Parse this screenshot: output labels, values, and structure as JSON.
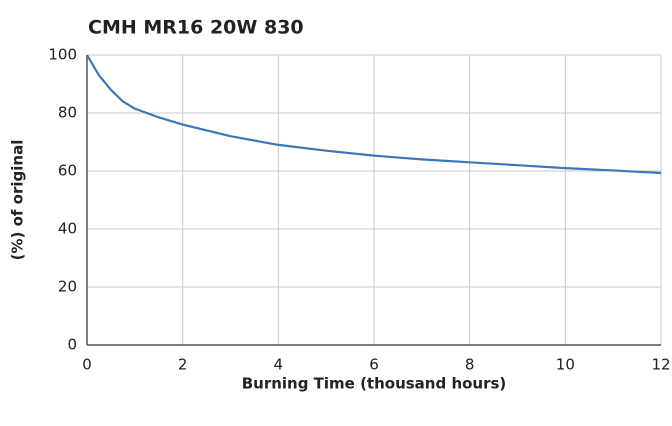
{
  "chart_data": {
    "type": "line",
    "title": "CMH MR16 20W 830",
    "x_label": "Burning Time (thousand hours)",
    "y_label": "(%) of original",
    "x": [
      0,
      0.25,
      0.5,
      0.75,
      1,
      1.5,
      2,
      3,
      4,
      5,
      6,
      7,
      8,
      9,
      10,
      11,
      12
    ],
    "series": [
      {
        "name": "CMH MR16 20W 830",
        "color": "#3a78b8",
        "values": [
          100,
          93,
          88,
          84,
          81.5,
          78.5,
          76,
          72,
          69,
          67,
          65.3,
          64,
          63,
          62,
          61,
          60.2,
          59.3
        ]
      }
    ],
    "xlim": [
      0,
      12
    ],
    "xticks": [
      0,
      2,
      4,
      6,
      8,
      10,
      12
    ],
    "ylim": [
      0,
      100
    ],
    "yticks": [
      0,
      20,
      40,
      60,
      80,
      100
    ],
    "grid": true
  }
}
